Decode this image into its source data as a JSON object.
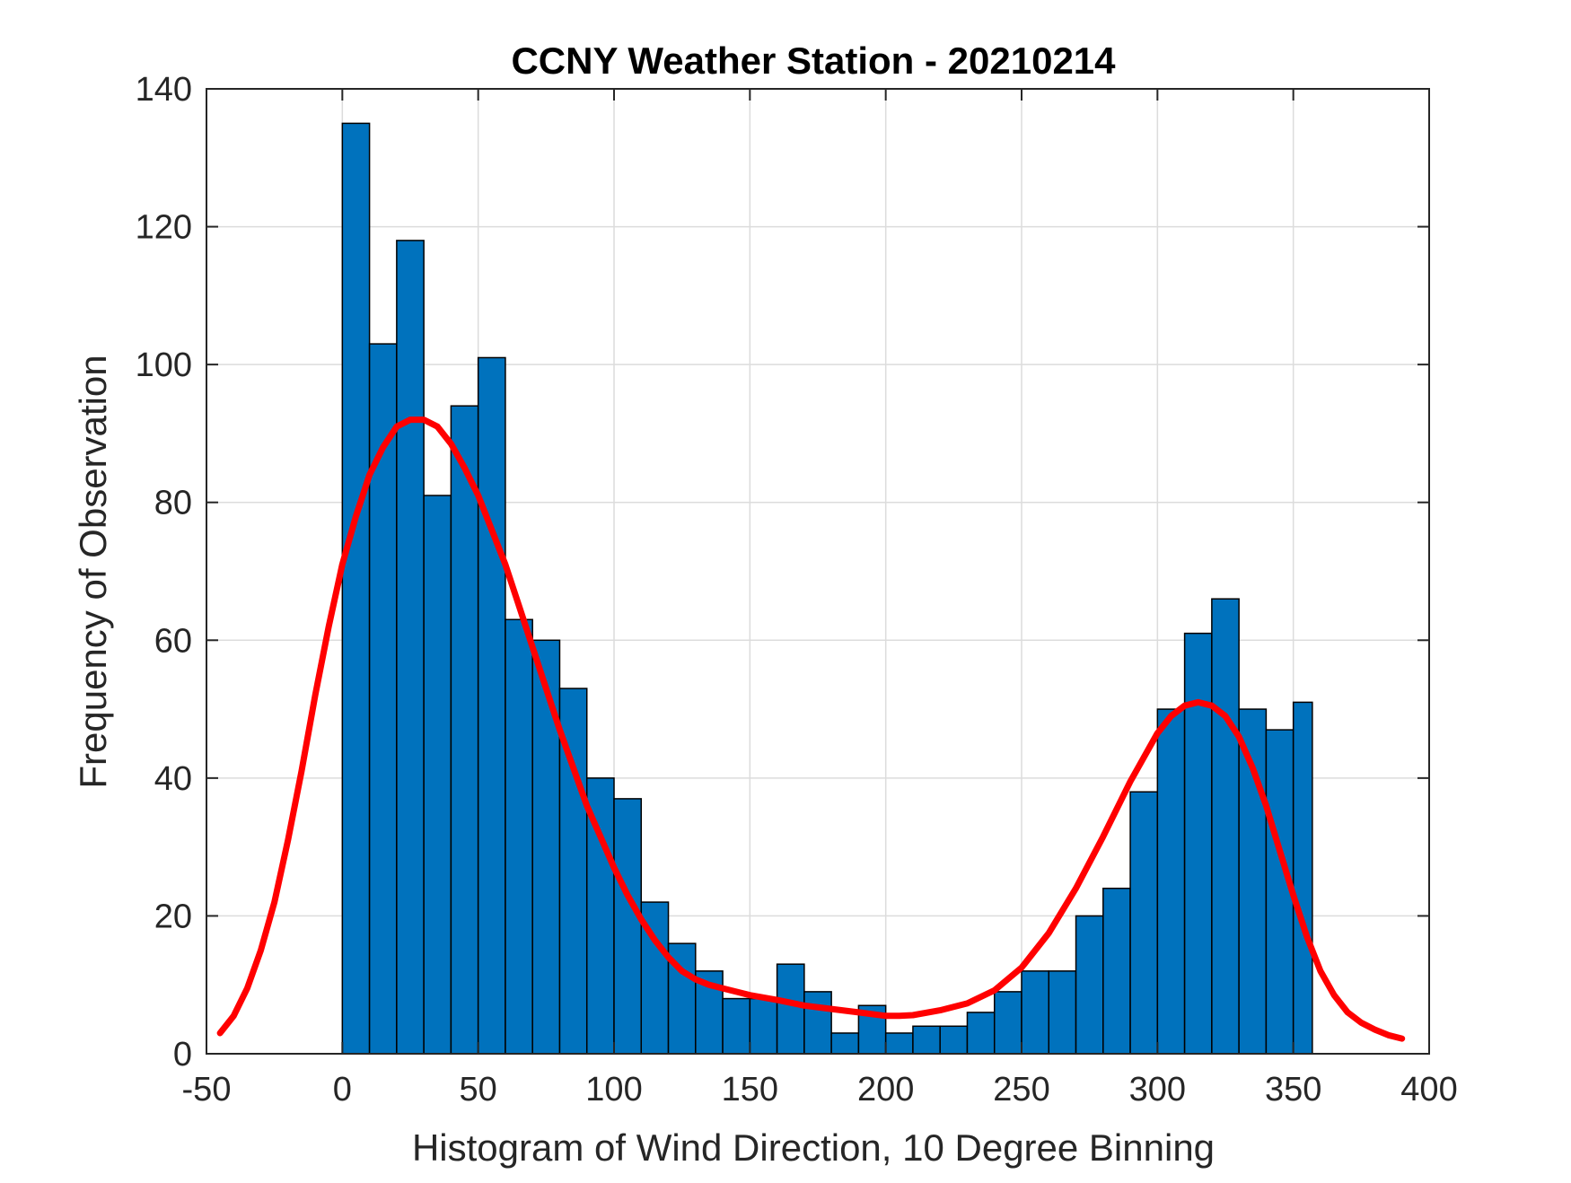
{
  "chart_data": {
    "type": "bar",
    "title": "CCNY Weather Station - 20210214",
    "xlabel": "Histogram of Wind Direction, 10 Degree Binning",
    "ylabel": "Frequency of Observation",
    "xlim": [
      -50,
      400
    ],
    "ylim": [
      0,
      140
    ],
    "grid": true,
    "xticks": [
      -50,
      0,
      50,
      100,
      150,
      200,
      250,
      300,
      350,
      400
    ],
    "yticks": [
      0,
      20,
      40,
      60,
      80,
      100,
      120,
      140
    ],
    "bin_width": 10,
    "bin_edges": [
      0,
      10,
      20,
      30,
      40,
      50,
      60,
      70,
      80,
      90,
      100,
      110,
      120,
      130,
      140,
      150,
      160,
      170,
      180,
      190,
      200,
      210,
      220,
      230,
      240,
      250,
      260,
      270,
      280,
      290,
      300,
      310,
      320,
      330,
      340,
      350,
      357
    ],
    "values": [
      135,
      103,
      118,
      81,
      94,
      101,
      63,
      60,
      53,
      40,
      37,
      22,
      16,
      12,
      8,
      8,
      13,
      9,
      3,
      7,
      3,
      4,
      4,
      6,
      9,
      12,
      12,
      20,
      24,
      38,
      50,
      61,
      66,
      50,
      47,
      51
    ],
    "bar_color": "#0072BD",
    "bar_edge_color": "#000000",
    "fit_curve": {
      "name": "fit",
      "color": "#FF0000",
      "x": [
        -45,
        -40,
        -35,
        -30,
        -25,
        -20,
        -15,
        -10,
        -5,
        0,
        5,
        10,
        15,
        20,
        25,
        30,
        35,
        40,
        45,
        50,
        55,
        60,
        65,
        70,
        75,
        80,
        85,
        90,
        95,
        100,
        105,
        110,
        115,
        120,
        125,
        130,
        135,
        140,
        145,
        150,
        160,
        170,
        180,
        190,
        200,
        205,
        210,
        220,
        230,
        240,
        250,
        260,
        270,
        280,
        290,
        300,
        305,
        310,
        315,
        320,
        325,
        330,
        335,
        340,
        345,
        350,
        355,
        360,
        365,
        370,
        375,
        380,
        385,
        390
      ],
      "y": [
        3,
        5.5,
        9.5,
        15,
        22,
        31,
        41,
        52,
        62,
        71,
        78,
        84,
        88,
        91,
        92,
        92,
        91,
        88.5,
        85,
        81,
        76,
        71,
        65,
        59,
        53,
        47,
        41.5,
        36,
        31.5,
        27,
        23,
        19.5,
        16.5,
        14,
        12,
        10.8,
        10,
        9.5,
        9,
        8.5,
        7.8,
        7,
        6.5,
        6,
        5.5,
        5.5,
        5.6,
        6.3,
        7.3,
        9.2,
        12.5,
        17.5,
        24,
        31.5,
        39.5,
        46.5,
        49,
        50.5,
        51,
        50.5,
        49,
        46,
        41.5,
        36,
        29.5,
        23,
        17,
        12,
        8.5,
        6,
        4.5,
        3.5,
        2.7,
        2.2
      ]
    }
  }
}
